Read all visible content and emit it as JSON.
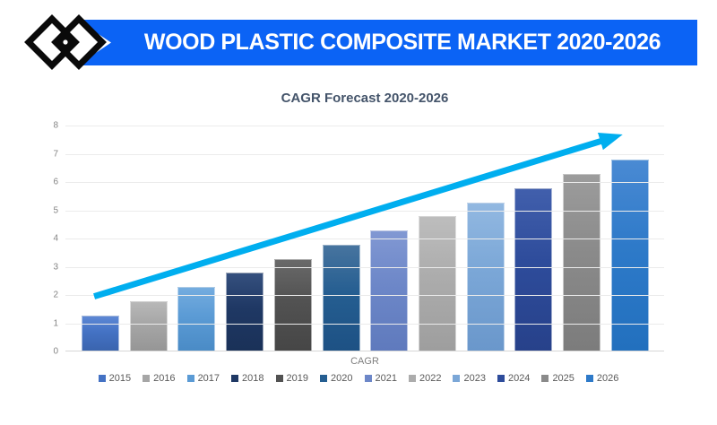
{
  "header": {
    "title": "WOOD PLASTIC COMPOSITE MARKET 2020-2026",
    "banner_color": "#0B63F5",
    "logo": "overlapping-diamonds"
  },
  "chart_data": {
    "type": "bar",
    "title": "CAGR Forecast 2020-2026",
    "xlabel": "CAGR",
    "ylabel": "",
    "ylim": [
      0,
      8
    ],
    "ytick_step": 1,
    "grid": true,
    "legend_position": "bottom",
    "categories": [
      "2015",
      "2016",
      "2017",
      "2018",
      "2019",
      "2020",
      "2021",
      "2022",
      "2023",
      "2024",
      "2025",
      "2026"
    ],
    "values": [
      1.25,
      1.75,
      2.25,
      2.75,
      3.25,
      3.75,
      4.25,
      4.75,
      5.25,
      5.75,
      6.25,
      6.75
    ],
    "bar_colors": [
      {
        "top": "#5D88D5",
        "base": "#4472C4",
        "bottom": "#3A64AE"
      },
      {
        "top": "#B8B8B8",
        "base": "#A6A6A6",
        "bottom": "#969696"
      },
      {
        "top": "#74ACDF",
        "base": "#5B9BD5",
        "bottom": "#4A8BC6"
      },
      {
        "top": "#35507E",
        "base": "#1F3864",
        "bottom": "#1A3158"
      },
      {
        "top": "#696969",
        "base": "#525252",
        "bottom": "#464646"
      },
      {
        "top": "#47749F",
        "base": "#255E91",
        "bottom": "#1D5184"
      },
      {
        "top": "#8198D3",
        "base": "#6D87C8",
        "bottom": "#5F7ABD"
      },
      {
        "top": "#BDBDBD",
        "base": "#ACACAC",
        "bottom": "#9E9E9E"
      },
      {
        "top": "#92B8E1",
        "base": "#7BA7D7",
        "bottom": "#6A97CB"
      },
      {
        "top": "#415FAC",
        "base": "#2E4C9B",
        "bottom": "#27418A"
      },
      {
        "top": "#9C9C9C",
        "base": "#8A8A8A",
        "bottom": "#7C7C7C"
      },
      {
        "top": "#4A8AD3",
        "base": "#2E7AC9",
        "bottom": "#2270BE"
      }
    ],
    "trend_arrow": {
      "color": "#00AEEF",
      "start_x_frac": 0.048,
      "start_value": 1.95,
      "end_x_frac": 0.895,
      "end_value": 7.45
    }
  },
  "theme": {
    "title_color": "#44546A",
    "axis_text_color": "#848484",
    "legend_text_color": "#595959",
    "gridline_color": "#EBEBEB"
  }
}
